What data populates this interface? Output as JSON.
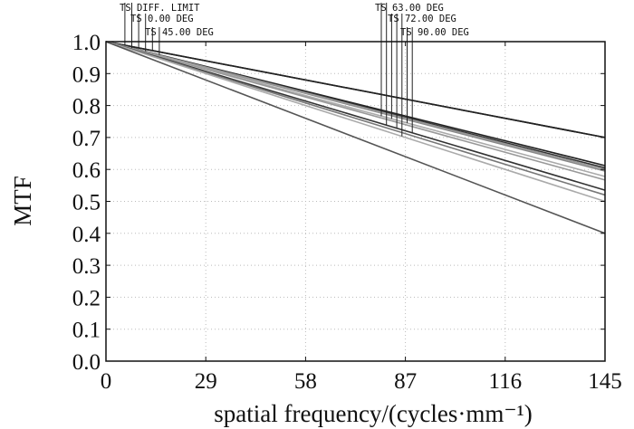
{
  "chart_data": {
    "type": "line",
    "xlabel": "spatial frequency/(cycles·mm⁻¹)",
    "ylabel": "MTF",
    "xlim": [
      0,
      145
    ],
    "ylim": [
      0,
      1.0
    ],
    "xticks": [
      "0",
      "29",
      "58",
      "87",
      "116",
      "145"
    ],
    "yticks": [
      "0.0",
      "0.1",
      "0.2",
      "0.3",
      "0.4",
      "0.5",
      "0.6",
      "0.7",
      "0.8",
      "0.9",
      "1.0"
    ],
    "grid": true,
    "legend_labels": [
      "TS DIFF. LIMIT",
      "TS 0.00 DEG",
      "TS 45.00 DEG",
      "TS 63.00 DEG",
      "TS 72.00 DEG",
      "TS 90.00 DEG"
    ],
    "series": [
      {
        "name": "DIFF. LIMIT T",
        "x": [
          0,
          145
        ],
        "values": [
          1.0,
          0.7
        ],
        "color": "#111111"
      },
      {
        "name": "DIFF. LIMIT S",
        "x": [
          0,
          145
        ],
        "values": [
          1.0,
          0.7
        ],
        "color": "#222222"
      },
      {
        "name": "0.00 DEG T",
        "x": [
          0,
          145
        ],
        "values": [
          1.0,
          0.612
        ],
        "color": "#222222"
      },
      {
        "name": "0.00 DEG S",
        "x": [
          0,
          145
        ],
        "values": [
          1.0,
          0.605
        ],
        "color": "#333333"
      },
      {
        "name": "45.00 DEG T",
        "x": [
          0,
          145
        ],
        "values": [
          1.0,
          0.595
        ],
        "color": "#888888"
      },
      {
        "name": "45.00 DEG S",
        "x": [
          0,
          145
        ],
        "values": [
          1.0,
          0.6
        ],
        "color": "#999999"
      },
      {
        "name": "63.00 DEG T",
        "x": [
          0,
          145
        ],
        "values": [
          1.0,
          0.578
        ],
        "color": "#aaaaaa"
      },
      {
        "name": "63.00 DEG S",
        "x": [
          0,
          145
        ],
        "values": [
          1.0,
          0.567
        ],
        "color": "#999999"
      },
      {
        "name": "72.00 DEG T",
        "x": [
          0,
          145
        ],
        "values": [
          1.0,
          0.535
        ],
        "color": "#333333"
      },
      {
        "name": "72.00 DEG S",
        "x": [
          0,
          145
        ],
        "values": [
          1.0,
          0.52
        ],
        "color": "#777777"
      },
      {
        "name": "90.00 DEG S",
        "x": [
          0,
          145
        ],
        "values": [
          1.0,
          0.5
        ],
        "color": "#aaaaaa"
      },
      {
        "name": "90.00 DEG T",
        "x": [
          0,
          145
        ],
        "values": [
          1.0,
          0.4
        ],
        "color": "#555555"
      }
    ]
  }
}
